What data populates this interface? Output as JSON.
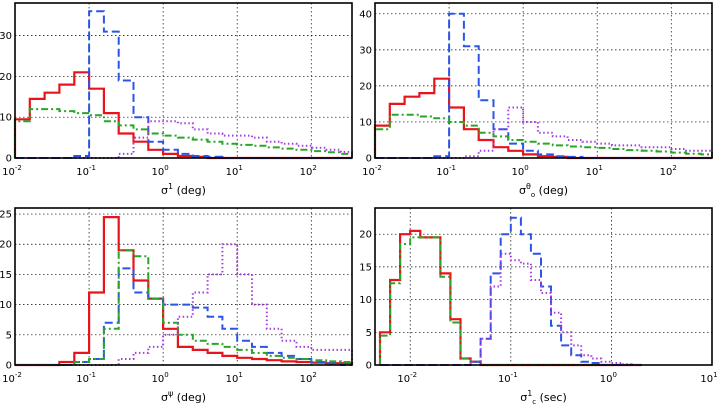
{
  "chart_data": [
    {
      "type": "histogram",
      "xscale": "log",
      "xlim_exp": [
        -2,
        2.55
      ],
      "ylim": [
        0,
        38
      ],
      "yticks": [
        "0",
        "10",
        "20",
        "30"
      ],
      "xticks": [
        {
          "base": "10",
          "exp": "-2"
        },
        {
          "base": "10",
          "exp": "-1"
        },
        {
          "base": "10",
          "exp": "0"
        },
        {
          "base": "10",
          "exp": "1"
        },
        {
          "base": "10",
          "exp": "2"
        }
      ],
      "xlabel": {
        "pre": "σ",
        "sup": "1",
        "post": " (deg)"
      },
      "edges_exp": [
        -2,
        -1.8,
        -1.6,
        -1.4,
        -1.2,
        -1,
        -0.8,
        -0.6,
        -0.4,
        -0.2,
        0,
        0.2,
        0.4,
        0.6,
        0.8,
        1,
        1.2,
        1.4,
        1.6,
        1.8,
        2,
        2.2,
        2.4,
        2.55
      ],
      "series": [
        {
          "name": "red",
          "color": "#e8141c",
          "dash": "none",
          "values": [
            9.5,
            14.5,
            16,
            18,
            21,
            17,
            11,
            6,
            4,
            2,
            1,
            0.5,
            0.3,
            0,
            0,
            0,
            0,
            0,
            0,
            0,
            0,
            0,
            0
          ]
        },
        {
          "name": "blue",
          "color": "#2b55e6",
          "dash": "dashed",
          "values": [
            0,
            0,
            0,
            0,
            0.5,
            36,
            31,
            19,
            10,
            4,
            2,
            1,
            0.5,
            0.3,
            0,
            0,
            0,
            0,
            0,
            0,
            0,
            0,
            0
          ]
        },
        {
          "name": "green",
          "color": "#2aa52a",
          "dash": "dashdot",
          "values": [
            9,
            12,
            12,
            11.5,
            11,
            10.5,
            9,
            8,
            7,
            6,
            5.5,
            5,
            4.5,
            4,
            3.5,
            3.2,
            3,
            2.6,
            2.3,
            2,
            1.7,
            1.4,
            1
          ]
        },
        {
          "name": "purple",
          "color": "#a43de0",
          "dash": "dotted",
          "values": [
            0,
            0,
            0,
            0,
            0,
            0,
            0,
            1,
            5,
            9,
            9,
            8.5,
            7,
            6,
            5.5,
            5.5,
            5,
            4,
            3.5,
            3,
            2.5,
            2,
            1.5
          ]
        }
      ]
    },
    {
      "type": "histogram",
      "xscale": "log",
      "xlim_exp": [
        -2,
        2.55
      ],
      "ylim": [
        0,
        43
      ],
      "yticks": [
        "0",
        "10",
        "20",
        "30",
        "40"
      ],
      "xticks": [
        {
          "base": "10",
          "exp": "-2"
        },
        {
          "base": "10",
          "exp": "-1"
        },
        {
          "base": "10",
          "exp": "0"
        },
        {
          "base": "10",
          "exp": "1"
        },
        {
          "base": "10",
          "exp": "2"
        }
      ],
      "xlabel": {
        "pre": "σ",
        "sup": "θ",
        "sub": "o",
        "post": " (deg)"
      },
      "edges_exp": [
        -2,
        -1.8,
        -1.6,
        -1.4,
        -1.2,
        -1,
        -0.8,
        -0.6,
        -0.4,
        -0.2,
        0,
        0.2,
        0.4,
        0.6,
        0.8,
        1,
        1.2,
        1.4,
        1.6,
        1.8,
        2,
        2.2,
        2.4,
        2.55
      ],
      "series": [
        {
          "name": "red",
          "color": "#e8141c",
          "dash": "none",
          "values": [
            9,
            15,
            17,
            18,
            22,
            14,
            8,
            5,
            3,
            2,
            1,
            0.5,
            0.3,
            0,
            0,
            0,
            0,
            0,
            0,
            0,
            0,
            0,
            0
          ]
        },
        {
          "name": "blue",
          "color": "#2b55e6",
          "dash": "dashed",
          "values": [
            0,
            0,
            0,
            0,
            0.5,
            40,
            31,
            16,
            8,
            4,
            2,
            1,
            0.5,
            0.3,
            0,
            0,
            0,
            0,
            0,
            0,
            0,
            0,
            0
          ]
        },
        {
          "name": "green",
          "color": "#2aa52a",
          "dash": "dashdot",
          "values": [
            8,
            12,
            12,
            11.5,
            11,
            10,
            9,
            7,
            6,
            5,
            4.5,
            4,
            3.5,
            3.2,
            3,
            2.8,
            2.5,
            2.2,
            2,
            1.8,
            1.5,
            1.2,
            1
          ]
        },
        {
          "name": "purple",
          "color": "#a43de0",
          "dash": "dotted",
          "values": [
            0,
            0,
            0,
            0,
            0,
            0,
            0.5,
            2,
            8,
            14,
            10,
            7,
            6,
            5,
            4.5,
            4,
            3.5,
            3.5,
            3,
            3,
            2.5,
            2,
            2
          ]
        }
      ]
    },
    {
      "type": "histogram",
      "xscale": "log",
      "xlim_exp": [
        -2,
        2.55
      ],
      "ylim": [
        0,
        26
      ],
      "yticks": [
        "0",
        "5",
        "10",
        "15",
        "20",
        "25"
      ],
      "xticks": [
        {
          "base": "10",
          "exp": "-2"
        },
        {
          "base": "10",
          "exp": "-1"
        },
        {
          "base": "10",
          "exp": "0"
        },
        {
          "base": "10",
          "exp": "1"
        },
        {
          "base": "10",
          "exp": "2"
        }
      ],
      "xlabel": {
        "pre": "σ",
        "sup": "ψ",
        "post": " (deg)"
      },
      "edges_exp": [
        -2,
        -1.8,
        -1.6,
        -1.4,
        -1.2,
        -1,
        -0.8,
        -0.6,
        -0.4,
        -0.2,
        0,
        0.2,
        0.4,
        0.6,
        0.8,
        1,
        1.2,
        1.4,
        1.6,
        1.8,
        2,
        2.2,
        2.4,
        2.55
      ],
      "series": [
        {
          "name": "red",
          "color": "#e8141c",
          "dash": "none",
          "values": [
            0,
            0,
            0,
            0.5,
            2,
            12,
            24.5,
            19,
            14,
            11,
            6,
            3,
            2.5,
            2,
            1.5,
            1.2,
            1,
            0.8,
            0.6,
            0.5,
            0.4,
            0.3,
            0.3
          ]
        },
        {
          "name": "blue",
          "color": "#2b55e6",
          "dash": "dashed",
          "values": [
            0,
            0,
            0,
            0,
            0.5,
            1,
            7,
            16,
            12,
            11,
            10,
            10,
            9.5,
            8,
            6,
            4,
            3,
            2,
            1.5,
            1,
            0.5,
            0.3,
            0
          ]
        },
        {
          "name": "green",
          "color": "#2aa52a",
          "dash": "dashdot",
          "values": [
            0,
            0,
            0,
            0,
            0.5,
            1,
            6,
            19,
            18,
            11,
            7,
            5,
            4,
            3.5,
            3,
            2.5,
            2,
            1.5,
            1.2,
            1,
            0.8,
            0.6,
            0.5
          ]
        },
        {
          "name": "purple",
          "color": "#a43de0",
          "dash": "dotted",
          "values": [
            0,
            0,
            0,
            0,
            0,
            0,
            0,
            1,
            2,
            3,
            5,
            8,
            12,
            15,
            20,
            15,
            10,
            6,
            4,
            3,
            2.5,
            2.5,
            2.5
          ]
        }
      ]
    },
    {
      "type": "histogram",
      "xscale": "log",
      "xlim_exp": [
        -2.35,
        1
      ],
      "ylim": [
        0,
        24
      ],
      "yticks": [
        "0",
        "5",
        "10",
        "15",
        "20"
      ],
      "xticks": [
        {
          "base": "10",
          "exp": "-2"
        },
        {
          "base": "10",
          "exp": "-1"
        },
        {
          "base": "10",
          "exp": "0"
        },
        {
          "base": "10",
          "exp": "1"
        }
      ],
      "xlabel": {
        "pre": "σ",
        "sup": "1",
        "sub": "c",
        "post": " (sec)"
      },
      "edges_exp": [
        -2.3,
        -2.2,
        -2.1,
        -2.0,
        -1.9,
        -1.8,
        -1.7,
        -1.6,
        -1.5,
        -1.4,
        -1.3,
        -1.2,
        -1.1,
        -1.0,
        -0.9,
        -0.8,
        -0.7,
        -0.6,
        -0.5,
        -0.4,
        -0.3,
        -0.2,
        -0.1,
        0.0,
        0.1,
        0.2,
        0.3
      ],
      "series": [
        {
          "name": "red",
          "color": "#e8141c",
          "dash": "none",
          "values": [
            5,
            13,
            20,
            20.5,
            19.5,
            19.5,
            14,
            7,
            1,
            0.5,
            0,
            0,
            0,
            0,
            0,
            0,
            0,
            0,
            0,
            0,
            0,
            0,
            0,
            0,
            0,
            0
          ]
        },
        {
          "name": "green",
          "color": "#2aa52a",
          "dash": "dashdot",
          "values": [
            4.5,
            12.5,
            18.5,
            19.5,
            19.5,
            19.5,
            13.5,
            6.5,
            1,
            0.5,
            0,
            0,
            0,
            0,
            0,
            0,
            0,
            0,
            0,
            0,
            0,
            0,
            0,
            0,
            0,
            0
          ]
        },
        {
          "name": "blue",
          "color": "#2b55e6",
          "dash": "dashed",
          "values": [
            0,
            0,
            0,
            0,
            0,
            0,
            0,
            0,
            0,
            0.5,
            4,
            14,
            20,
            22.5,
            20,
            17,
            12,
            6,
            3,
            1.5,
            0.5,
            0.3,
            0,
            0,
            0,
            0
          ]
        },
        {
          "name": "purple",
          "color": "#a43de0",
          "dash": "dotted",
          "values": [
            0,
            0,
            0,
            0,
            0,
            0,
            0,
            0,
            0,
            0.5,
            4,
            12,
            17,
            16,
            15.5,
            13,
            11,
            8,
            5,
            3,
            1.5,
            1,
            0.5,
            0.3,
            0.1,
            0
          ]
        }
      ]
    }
  ]
}
